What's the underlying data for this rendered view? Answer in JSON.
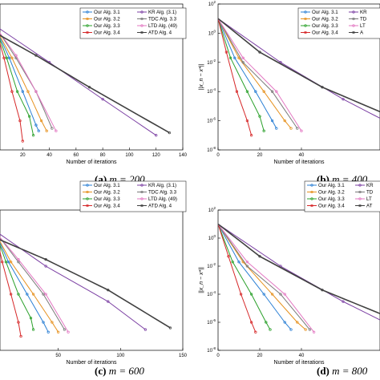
{
  "colors": {
    "Our Alg. 3.1": "#2a7fd4",
    "Our Alg. 3.2": "#e6911e",
    "Our Alg. 3.3": "#2aa02a",
    "Our Alg. 3.4": "#d62728",
    "KR Alg. (3.1)": "#7b3fa3",
    "TDC Alg. 3.3": "#7a7a7a",
    "LTD Alg. (49)": "#e377c2",
    "ATD Alg. 4": "#404040"
  },
  "chart_data": [
    {
      "type": "line",
      "caption_letter": "(a)",
      "caption_value": "m = 200",
      "xlabel": "Number of iterations",
      "ylabel": "",
      "xticks": [
        "20",
        "40",
        "60",
        "80",
        "100",
        "120",
        "140"
      ],
      "xlim": [
        0,
        140
      ],
      "ylog": true,
      "legend_position": "top-right",
      "legend": [
        "Our Alg. 3.1",
        "Our Alg. 3.2",
        "Our Alg. 3.3",
        "Our Alg. 3.4",
        "KR Alg. (3.1)",
        "TDC Alg. 3.3",
        "LTD Alg. (49)",
        "ATD Alg. 4"
      ],
      "series": [
        {
          "name": "Our Alg. 3.1",
          "points": [
            [
              0,
              2.0
            ],
            [
              10,
              0.02
            ],
            [
              20,
              0.0001
            ],
            [
              30,
              5e-07
            ],
            [
              32,
              2e-07
            ]
          ]
        },
        {
          "name": "Our Alg. 3.2",
          "points": [
            [
              0,
              2.0
            ],
            [
              12,
              0.02
            ],
            [
              24,
              0.0001
            ],
            [
              34,
              1e-06
            ],
            [
              38,
              2e-07
            ]
          ]
        },
        {
          "name": "Our Alg. 3.3",
          "points": [
            [
              0,
              2.0
            ],
            [
              8,
              0.02
            ],
            [
              16,
              0.0001
            ],
            [
              25,
              2e-06
            ],
            [
              28,
              1e-07
            ]
          ]
        },
        {
          "name": "Our Alg. 3.4",
          "points": [
            [
              0,
              2.0
            ],
            [
              6,
              0.02
            ],
            [
              12,
              0.0001
            ],
            [
              18,
              1e-06
            ],
            [
              20,
              4e-08
            ]
          ]
        },
        {
          "name": "KR Alg. (3.1)",
          "points": [
            [
              0,
              3.0
            ],
            [
              40,
              0.01
            ],
            [
              80,
              3e-05
            ],
            [
              120,
              1e-07
            ]
          ]
        },
        {
          "name": "TDC Alg. 3.3",
          "points": [
            [
              0,
              2.5
            ],
            [
              15,
              0.02
            ],
            [
              30,
              0.0001
            ],
            [
              42,
              3e-07
            ]
          ]
        },
        {
          "name": "LTD Alg. (49)",
          "points": [
            [
              0,
              2.5
            ],
            [
              15,
              0.03
            ],
            [
              30,
              0.0001
            ],
            [
              45,
              2e-07
            ]
          ]
        },
        {
          "name": "ATD Alg. 4",
          "points": [
            [
              0,
              1.0
            ],
            [
              30,
              0.03
            ],
            [
              70,
              0.0002
            ],
            [
              130,
              1.5e-07
            ]
          ]
        }
      ]
    },
    {
      "type": "line",
      "caption_letter": "(b)",
      "caption_value": "m = 400",
      "xlabel": "Number of iterations",
      "ylabel": "||x_n − x*||",
      "xticks": [
        "0",
        "20",
        "40"
      ],
      "yticks": [
        "10^-8",
        "10^-6",
        "10^-4",
        "10^-2",
        "10^0",
        "10^2"
      ],
      "xlim": [
        0,
        80
      ],
      "ylim": [
        1e-08,
        100
      ],
      "ylog": true,
      "legend_position": "top-right",
      "legend": [
        "Our Alg. 3.1",
        "Our Alg. 3.2",
        "Our Alg. 3.3",
        "Our Alg. 3.4",
        "KR",
        "TD",
        "LT",
        "A"
      ],
      "series": [
        {
          "name": "Our Alg. 3.1",
          "points": [
            [
              0,
              10
            ],
            [
              8,
              0.02
            ],
            [
              18,
              0.0001
            ],
            [
              26,
              1e-06
            ],
            [
              28,
              3e-07
            ]
          ]
        },
        {
          "name": "Our Alg. 3.2",
          "points": [
            [
              0,
              10
            ],
            [
              10,
              0.02
            ],
            [
              22,
              0.0001
            ],
            [
              32,
              1e-06
            ],
            [
              35,
              3e-07
            ]
          ]
        },
        {
          "name": "Our Alg. 3.3",
          "points": [
            [
              0,
              10
            ],
            [
              6,
              0.02
            ],
            [
              14,
              0.0001
            ],
            [
              20,
              2e-06
            ],
            [
              22,
              2e-07
            ]
          ]
        },
        {
          "name": "Our Alg. 3.4",
          "points": [
            [
              0,
              10
            ],
            [
              4,
              0.05
            ],
            [
              9,
              0.0001
            ],
            [
              14,
              1e-06
            ],
            [
              16,
              1e-07
            ]
          ]
        },
        {
          "name": "KR Alg. (3.1)",
          "points": [
            [
              0,
              10
            ],
            [
              30,
              0.01
            ],
            [
              60,
              3e-05
            ],
            [
              80,
              1e-06
            ]
          ]
        },
        {
          "name": "TDC Alg. 3.3",
          "points": [
            [
              0,
              10
            ],
            [
              12,
              0.01
            ],
            [
              26,
              0.0001
            ],
            [
              38,
              3e-07
            ]
          ]
        },
        {
          "name": "LTD Alg. (49)",
          "points": [
            [
              0,
              10
            ],
            [
              12,
              0.02
            ],
            [
              28,
              0.0001
            ],
            [
              40,
              2e-07
            ]
          ]
        },
        {
          "name": "ATD Alg. 4",
          "points": [
            [
              0,
              10
            ],
            [
              20,
              0.05
            ],
            [
              50,
              0.0002
            ],
            [
              80,
              3e-06
            ]
          ]
        }
      ]
    },
    {
      "type": "line",
      "caption_letter": "(c)",
      "caption_value": "m = 600",
      "xlabel": "Number of iterations",
      "ylabel": "",
      "xticks": [
        "50",
        "100",
        "150"
      ],
      "xlim": [
        0,
        150
      ],
      "ylog": true,
      "legend_position": "top-right",
      "legend": [
        "Our Alg. 3.1",
        "Our Alg. 3.2",
        "Our Alg. 3.3",
        "Our Alg. 3.4",
        "KR Alg. (3.1)",
        "TDC Alg. 3.3",
        "LTD Alg. (49)",
        "ATD Alg. 4"
      ],
      "series": [
        {
          "name": "Our Alg. 3.1",
          "points": [
            [
              0,
              2.0
            ],
            [
              10,
              0.02
            ],
            [
              25,
              0.0001
            ],
            [
              38,
              1e-06
            ],
            [
              42,
              2e-07
            ]
          ]
        },
        {
          "name": "Our Alg. 3.2",
          "points": [
            [
              0,
              2.0
            ],
            [
              12,
              0.02
            ],
            [
              30,
              0.0001
            ],
            [
              45,
              1e-06
            ],
            [
              50,
              2e-07
            ]
          ]
        },
        {
          "name": "Our Alg. 3.3",
          "points": [
            [
              0,
              2.0
            ],
            [
              8,
              0.02
            ],
            [
              18,
              0.0001
            ],
            [
              28,
              2e-06
            ],
            [
              30,
              3e-07
            ]
          ]
        },
        {
          "name": "Our Alg. 3.4",
          "points": [
            [
              0,
              2.0
            ],
            [
              5,
              0.02
            ],
            [
              12,
              0.0001
            ],
            [
              18,
              1e-06
            ],
            [
              20,
              1e-07
            ]
          ]
        },
        {
          "name": "KR Alg. (3.1)",
          "points": [
            [
              0,
              3.0
            ],
            [
              40,
              0.01
            ],
            [
              90,
              3e-05
            ],
            [
              120,
              3e-07
            ]
          ]
        },
        {
          "name": "TDC Alg. 3.3",
          "points": [
            [
              0,
              2.5
            ],
            [
              18,
              0.02
            ],
            [
              38,
              0.0001
            ],
            [
              55,
              3e-07
            ]
          ]
        },
        {
          "name": "LTD Alg. (49)",
          "points": [
            [
              0,
              2.5
            ],
            [
              18,
              0.03
            ],
            [
              40,
              0.0001
            ],
            [
              58,
              2e-07
            ]
          ]
        },
        {
          "name": "ATD Alg. 4",
          "points": [
            [
              0,
              1.0
            ],
            [
              40,
              0.03
            ],
            [
              90,
              0.0002
            ],
            [
              140,
              4e-07
            ]
          ]
        }
      ]
    },
    {
      "type": "line",
      "caption_letter": "(d)",
      "caption_value": "m = 800",
      "xlabel": "Number of iterations",
      "ylabel": "||x_n − x*||",
      "xticks": [
        "0",
        "20",
        "40"
      ],
      "yticks": [
        "10^-8",
        "10^-6",
        "10^-4",
        "10^-2",
        "10^0",
        "10^2"
      ],
      "xlim": [
        0,
        80
      ],
      "ylim": [
        1e-08,
        100
      ],
      "ylog": true,
      "legend_position": "top-right",
      "legend": [
        "Our Alg. 3.1",
        "Our Alg. 3.2",
        "Our Alg. 3.3",
        "Our Alg. 3.4",
        "KR",
        "TD",
        "LT",
        "AT"
      ],
      "series": [
        {
          "name": "Our Alg. 3.1",
          "points": [
            [
              0,
              10
            ],
            [
              10,
              0.02
            ],
            [
              22,
              0.0001
            ],
            [
              32,
              1e-06
            ],
            [
              35,
              3e-07
            ]
          ]
        },
        {
          "name": "Our Alg. 3.2",
          "points": [
            [
              0,
              10
            ],
            [
              12,
              0.02
            ],
            [
              26,
              0.0001
            ],
            [
              38,
              1e-06
            ],
            [
              42,
              3e-07
            ]
          ]
        },
        {
          "name": "Our Alg. 3.3",
          "points": [
            [
              0,
              10
            ],
            [
              7,
              0.02
            ],
            [
              16,
              0.0001
            ],
            [
              23,
              1e-06
            ],
            [
              25,
              3e-07
            ]
          ]
        },
        {
          "name": "Our Alg. 3.4",
          "points": [
            [
              0,
              10
            ],
            [
              5,
              0.05
            ],
            [
              11,
              0.0001
            ],
            [
              16,
              1e-06
            ],
            [
              18,
              2e-07
            ]
          ]
        },
        {
          "name": "KR Alg. (3.1)",
          "points": [
            [
              0,
              10
            ],
            [
              30,
              0.01
            ],
            [
              60,
              3e-05
            ],
            [
              80,
              1e-06
            ]
          ]
        },
        {
          "name": "TDC Alg. 3.3",
          "points": [
            [
              0,
              10
            ],
            [
              14,
              0.01
            ],
            [
              30,
              0.0001
            ],
            [
              44,
              3e-07
            ]
          ]
        },
        {
          "name": "LTD Alg. (49)",
          "points": [
            [
              0,
              10
            ],
            [
              14,
              0.02
            ],
            [
              32,
              0.0001
            ],
            [
              46,
              2e-07
            ]
          ]
        },
        {
          "name": "ATD Alg. 4",
          "points": [
            [
              0,
              10
            ],
            [
              20,
              0.05
            ],
            [
              50,
              0.0002
            ],
            [
              80,
              3e-06
            ]
          ]
        }
      ]
    }
  ]
}
